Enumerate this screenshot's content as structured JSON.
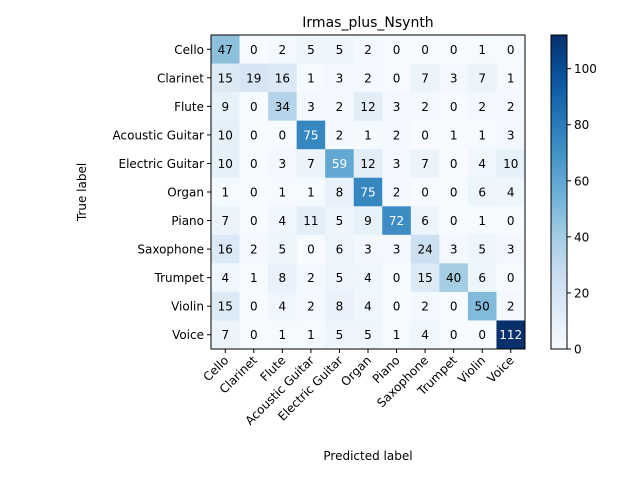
{
  "chart_data": {
    "type": "heatmap",
    "title": "Irmas_plus_Nsynth",
    "xlabel": "Predicted label",
    "ylabel": "True label",
    "labels": [
      "Cello",
      "Clarinet",
      "Flute",
      "Acoustic Guitar",
      "Electric Guitar",
      "Organ",
      "Piano",
      "Saxophone",
      "Trumpet",
      "Violin",
      "Voice"
    ],
    "matrix": [
      [
        47,
        0,
        2,
        5,
        5,
        2,
        0,
        0,
        0,
        1,
        0
      ],
      [
        15,
        19,
        16,
        1,
        3,
        2,
        0,
        7,
        3,
        7,
        1
      ],
      [
        9,
        0,
        34,
        3,
        2,
        12,
        3,
        2,
        0,
        2,
        2
      ],
      [
        10,
        0,
        0,
        75,
        2,
        1,
        2,
        0,
        1,
        1,
        3
      ],
      [
        10,
        0,
        3,
        7,
        59,
        12,
        3,
        7,
        0,
        4,
        10
      ],
      [
        1,
        0,
        1,
        1,
        8,
        75,
        2,
        0,
        0,
        6,
        4
      ],
      [
        7,
        0,
        4,
        11,
        5,
        9,
        72,
        6,
        0,
        1,
        0
      ],
      [
        16,
        2,
        5,
        0,
        6,
        3,
        3,
        24,
        3,
        5,
        3
      ],
      [
        4,
        1,
        8,
        2,
        5,
        4,
        0,
        15,
        40,
        6,
        0
      ],
      [
        15,
        0,
        4,
        2,
        8,
        4,
        0,
        2,
        0,
        50,
        2
      ],
      [
        7,
        0,
        1,
        1,
        5,
        5,
        1,
        4,
        0,
        0,
        112
      ]
    ],
    "colormap": "Blues",
    "vmin": 0,
    "vmax": 112,
    "colorbar_ticks": [
      0,
      20,
      40,
      60,
      80,
      100
    ]
  }
}
